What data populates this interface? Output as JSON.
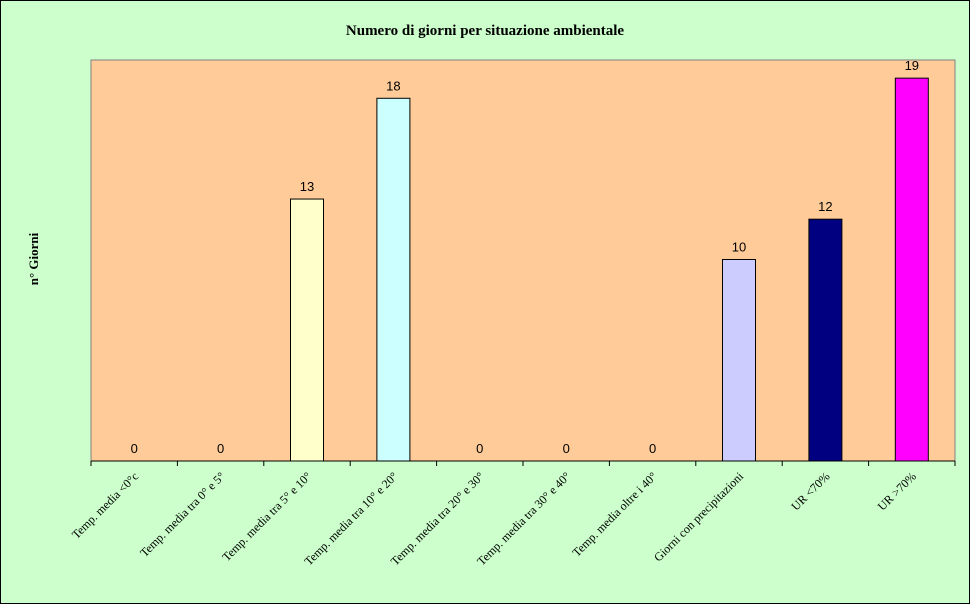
{
  "chart_data": {
    "type": "bar",
    "title": "Numero di giorni per situazione ambientale",
    "ylabel": "n° Giorni",
    "xlabel": "",
    "categories": [
      "Temp. media <0°c",
      "Temp. media tra 0° e 5°",
      "Temp. media tra 5° e 10°",
      "Temp. media tra 10° e 20°",
      "Temp. media tra 20° e 30°",
      "Temp. media tra 30° e 40°",
      "Temp. media oltre i 40°",
      "Giorni con precipitazioni",
      "UR <70%",
      "UR >70%"
    ],
    "values": [
      0,
      0,
      13,
      18,
      0,
      0,
      0,
      10,
      12,
      19
    ],
    "bar_colors": [
      "#ffffcc",
      "#ffffcc",
      "#ffffcc",
      "#ccffff",
      "#ccffff",
      "#ccffff",
      "#ccffff",
      "#ccccff",
      "#000080",
      "#ff00ff"
    ],
    "ylim": [
      0,
      19
    ],
    "plot_background": "#ffcc99",
    "page_background": "#ccffcc",
    "grid": false,
    "legend": "none"
  }
}
